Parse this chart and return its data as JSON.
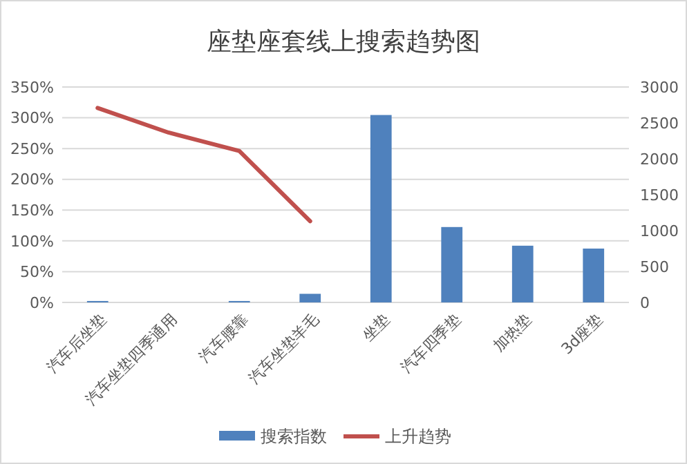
{
  "chart_data": {
    "type": "bar",
    "title": "座垫座套线上搜索趋势图",
    "categories": [
      "汽车后坐垫",
      "汽车坐垫四季通用",
      "汽车腰靠",
      "汽车坐垫羊毛",
      "坐垫",
      "汽车四季垫",
      "加热垫",
      "3d座垫"
    ],
    "series": [
      {
        "name": "搜索指数",
        "axis": "y2",
        "color": "#4f81bd",
        "values": [
          20,
          null,
          20,
          120,
          2610,
          1050,
          790,
          750
        ]
      },
      {
        "name": "上升趋势",
        "type": "line",
        "color": "#c0504d",
        "values": [
          316,
          276,
          246,
          132,
          null,
          null,
          null,
          null
        ]
      }
    ],
    "ylim": [
      0,
      350
    ],
    "yticks": [
      {
        "value": 0,
        "label": "0%"
      },
      {
        "value": 50,
        "label": "50%"
      },
      {
        "value": 100,
        "label": "100%"
      },
      {
        "value": 150,
        "label": "150%"
      },
      {
        "value": 200,
        "label": "200%"
      },
      {
        "value": 250,
        "label": "250%"
      },
      {
        "value": 300,
        "label": "300%"
      },
      {
        "value": 350,
        "label": "350%"
      }
    ],
    "y2lim": [
      0,
      3000
    ],
    "y2ticks": [
      0,
      500,
      1000,
      1500,
      2000,
      2500,
      3000
    ],
    "grid": "y",
    "legend": "bottom",
    "marker": "none",
    "line_style": "solid"
  }
}
